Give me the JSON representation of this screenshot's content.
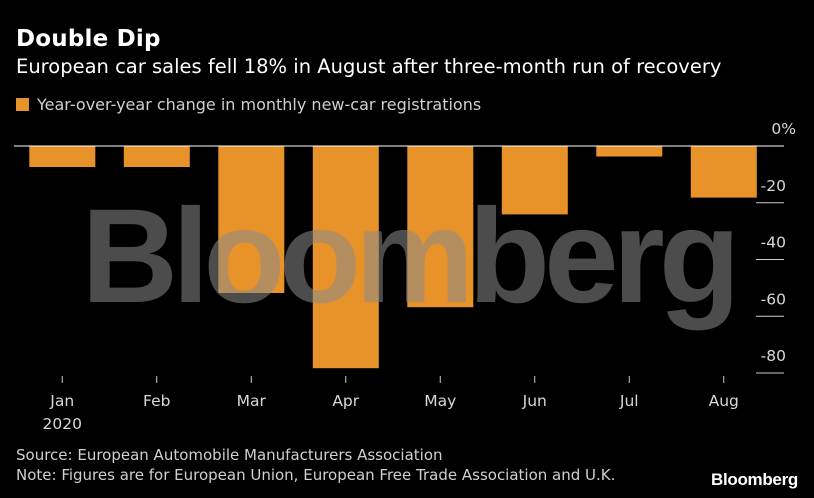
{
  "header": {
    "title": "Double Dip",
    "subtitle": "European car sales fell 18% in August after three-month run of recovery"
  },
  "legend": {
    "label": "Year-over-year change in monthly new-car registrations",
    "color": "#e8922a"
  },
  "watermark": "Bloomberg",
  "footer": {
    "source": "Source: European Automobile Manufacturers Association",
    "note": "Note: Figures are for European Union, European Free Trade Association and U.K.",
    "brand": "Bloomberg"
  },
  "chart_data": {
    "type": "bar",
    "categories": [
      "Jan",
      "Feb",
      "Mar",
      "Apr",
      "May",
      "Jun",
      "Jul",
      "Aug"
    ],
    "year_label": "2020",
    "values": [
      -7.4,
      -7.4,
      -51.8,
      -78.3,
      -56.8,
      -24.1,
      -3.7,
      -18.2
    ],
    "ylim": [
      -80,
      0
    ],
    "y_ticks": [
      0,
      -20,
      -40,
      -60,
      -80
    ],
    "y_tick_labels": [
      "0%",
      "-20",
      "-40",
      "-60",
      "-80"
    ],
    "y_axis_side": "right",
    "bar_color": "#e8922a",
    "grid": false
  }
}
